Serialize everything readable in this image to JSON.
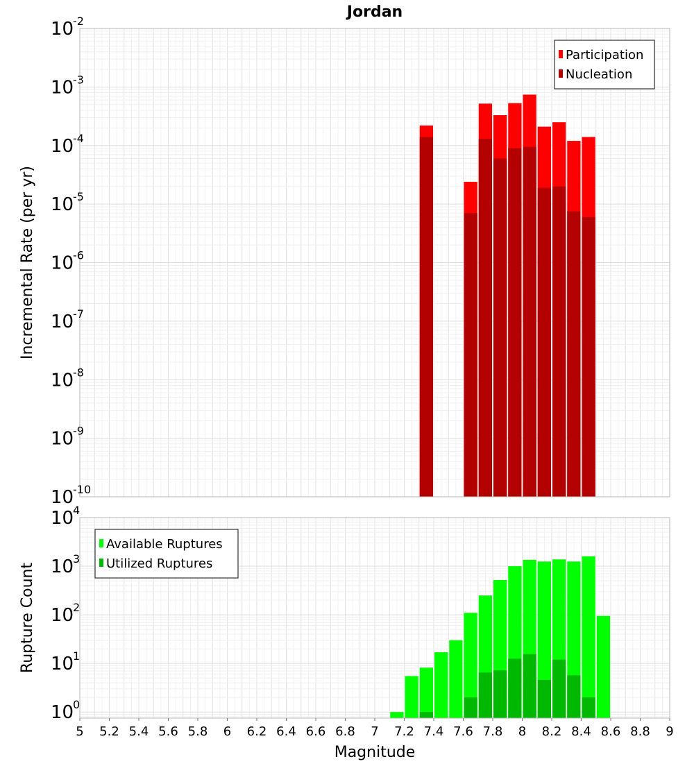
{
  "chart_data": [
    {
      "type": "bar",
      "title": "Jordan",
      "ylabel": "Incremental Rate (per yr)",
      "xlabel": "",
      "yscale": "log",
      "ylim": [
        1e-10,
        0.01
      ],
      "xlim": [
        5,
        9
      ],
      "ytick_base": "10",
      "ytick_exponents": [
        "-10",
        "-9",
        "-8",
        "-7",
        "-6",
        "-5",
        "-4",
        "-3",
        "-2"
      ],
      "bar_width": 0.1,
      "legend": {
        "placement": "top-right",
        "entries": [
          "Participation",
          "Nucleation"
        ]
      },
      "grid": true,
      "series": [
        {
          "name": "Participation",
          "color": "#ff0000",
          "x": [
            7.35,
            7.65,
            7.75,
            7.85,
            7.95,
            8.05,
            8.15,
            8.25,
            8.35,
            8.45
          ],
          "values": [
            0.00022,
            2.4e-05,
            0.00052,
            0.00033,
            0.00053,
            0.00074,
            0.00021,
            0.00025,
            0.00012,
            0.00014
          ]
        },
        {
          "name": "Nucleation",
          "color": "#b30000",
          "x": [
            7.35,
            7.65,
            7.75,
            7.85,
            7.95,
            8.05,
            8.15,
            8.25,
            8.35,
            8.45
          ],
          "values": [
            0.00014,
            7e-06,
            0.00013,
            6e-05,
            9e-05,
            9.5e-05,
            1.9e-05,
            2e-05,
            7.5e-06,
            6e-06
          ]
        }
      ]
    },
    {
      "type": "bar",
      "title": "",
      "ylabel": "Rupture Count",
      "xlabel": "Magnitude",
      "yscale": "log",
      "ylim": [
        0.75,
        10000
      ],
      "xlim": [
        5,
        9
      ],
      "ytick_base": "10",
      "ytick_exponents": [
        "0",
        "1",
        "2",
        "3",
        "4"
      ],
      "x_ticks": [
        "5",
        "5.2",
        "5.4",
        "5.6",
        "5.8",
        "6",
        "6.2",
        "6.4",
        "6.6",
        "6.8",
        "7",
        "7.2",
        "7.4",
        "7.6",
        "7.8",
        "8",
        "8.2",
        "8.4",
        "8.6",
        "8.8",
        "9"
      ],
      "bar_width": 0.1,
      "legend": {
        "placement": "top-left",
        "entries": [
          "Available Ruptures",
          "Utilized Ruptures"
        ]
      },
      "grid": true,
      "series": [
        {
          "name": "Available Ruptures",
          "color": "#00ff00",
          "x": [
            7.15,
            7.25,
            7.35,
            7.45,
            7.55,
            7.65,
            7.75,
            7.85,
            7.95,
            8.05,
            8.15,
            8.25,
            8.35,
            8.45,
            8.55
          ],
          "values": [
            1,
            5.5,
            8.2,
            17,
            30,
            110,
            250,
            520,
            1000,
            1350,
            1250,
            1380,
            1250,
            1600,
            95
          ]
        },
        {
          "name": "Utilized Ruptures",
          "color": "#00b800",
          "x": [
            7.35,
            7.65,
            7.75,
            7.85,
            7.95,
            8.05,
            8.15,
            8.25,
            8.35,
            8.45
          ],
          "values": [
            1,
            2,
            6.5,
            7.2,
            12.5,
            15.5,
            4.6,
            12,
            5.7,
            2
          ]
        }
      ]
    }
  ]
}
